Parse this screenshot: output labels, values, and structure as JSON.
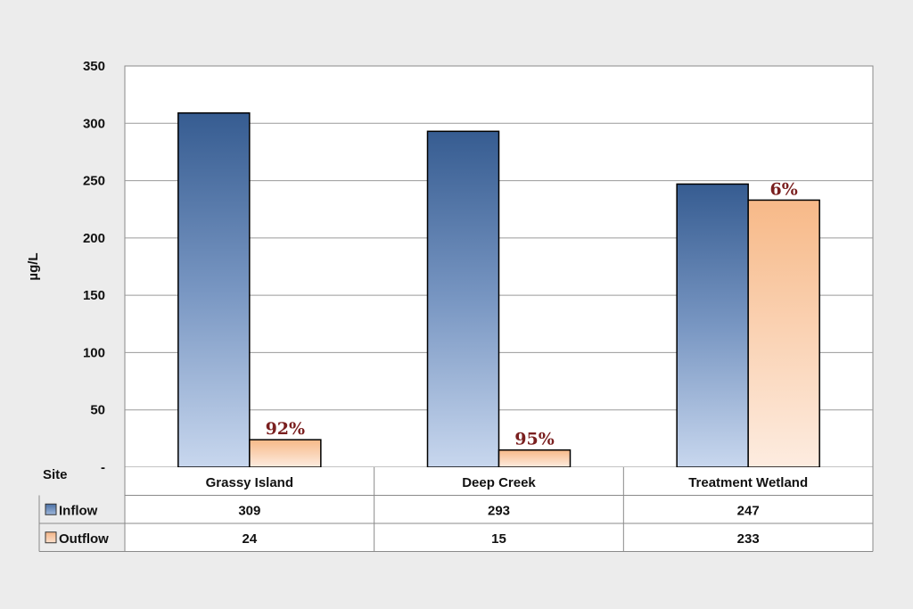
{
  "chart_data": {
    "type": "bar",
    "ylabel": "µg/L",
    "ylim": [
      0,
      350
    ],
    "yticks": [
      {
        "value": 0,
        "label": "-"
      },
      {
        "value": 50,
        "label": "50"
      },
      {
        "value": 100,
        "label": "100"
      },
      {
        "value": 150,
        "label": "150"
      },
      {
        "value": 200,
        "label": "200"
      },
      {
        "value": 250,
        "label": "250"
      },
      {
        "value": 300,
        "label": "300"
      },
      {
        "value": 350,
        "label": "350"
      }
    ],
    "grid": true,
    "table_header": "Site",
    "categories": [
      "Grassy Island",
      "Deep Creek",
      "Treatment Wetland"
    ],
    "series": [
      {
        "name": "Inflow",
        "values": [
          309,
          293,
          247
        ],
        "color": "#3a5f94"
      },
      {
        "name": "Outflow",
        "values": [
          24,
          15,
          233
        ],
        "color": "#f5b98a"
      }
    ],
    "annotations": [
      {
        "category_index": 0,
        "series_index": 1,
        "text": "92%"
      },
      {
        "category_index": 1,
        "series_index": 1,
        "text": "95%"
      },
      {
        "category_index": 2,
        "series_index": 1,
        "text": "6%"
      }
    ]
  }
}
